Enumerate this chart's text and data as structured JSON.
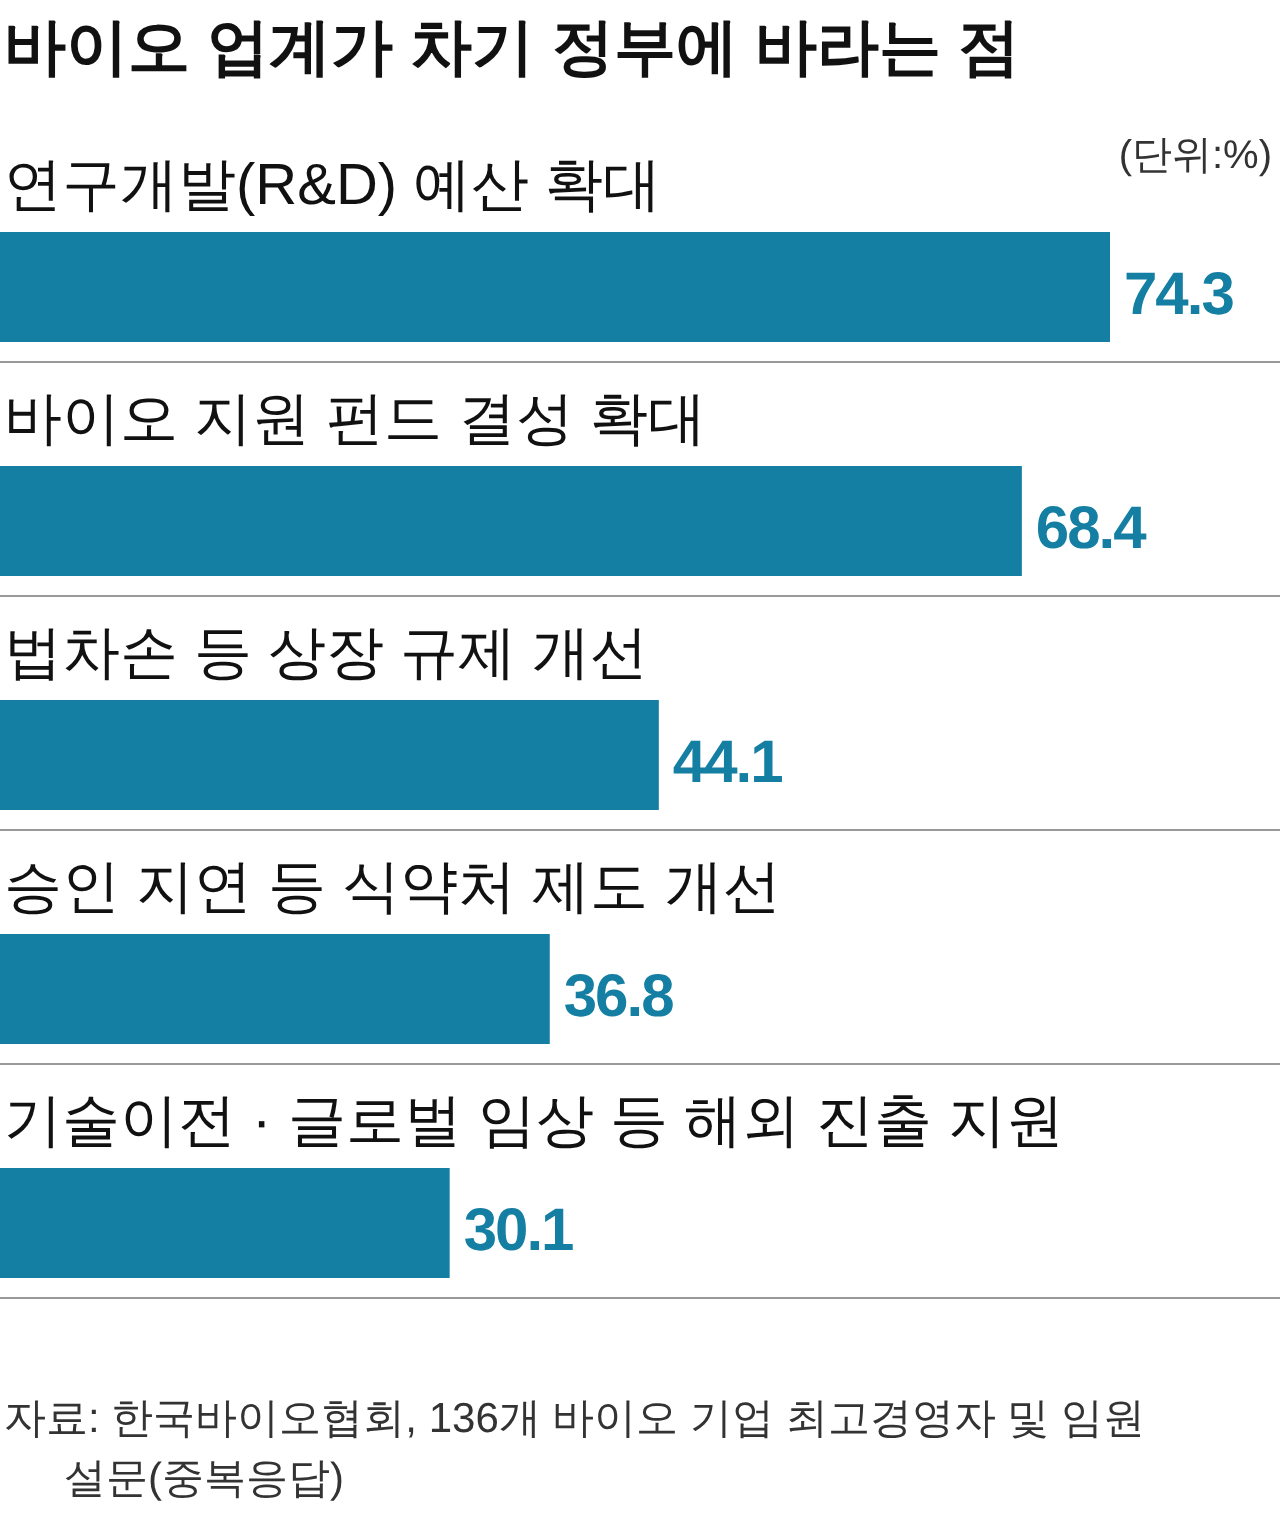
{
  "chart_data": {
    "type": "bar",
    "orientation": "horizontal",
    "title": "바이오 업계가 차기 정부에 바라는 점",
    "categories": [
      "연구개발(R&D) 예산 확대",
      "바이오 지원 펀드 결성 확대",
      "법차손 등 상장 규제 개선",
      "승인 지연 등 식약처 제도 개선",
      "기술이전 · 글로벌 임상 등 해외 진출 지원"
    ],
    "values": [
      74.3,
      68.4,
      44.1,
      36.8,
      30.1
    ],
    "color": "#147fa2",
    "data_labels": true,
    "annotations": [
      "(단위:%)",
      "자료: 한국바이오협회, 136개 바이오 기업 최고경영자 및 임원 설문(중복응답)"
    ]
  }
}
